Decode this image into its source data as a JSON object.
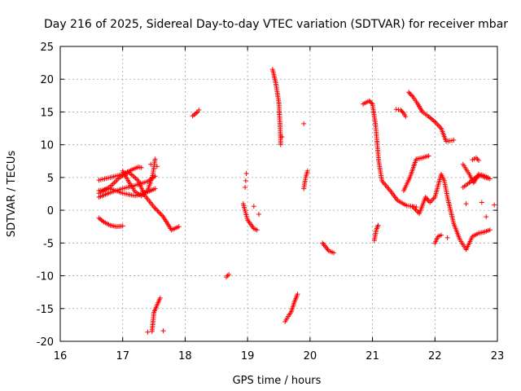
{
  "chart_data": {
    "type": "scatter",
    "title": "Day 216 of 2025, Sidereal Day-to-day VTEC variation (SDTVAR) for receiver mbar",
    "xlabel": "GPS time / hours",
    "ylabel": "SDTVAR / TECUs",
    "xlim": [
      16,
      23
    ],
    "ylim": [
      -20,
      25
    ],
    "xticks": [
      16,
      17,
      18,
      19,
      20,
      21,
      22,
      23
    ],
    "yticks": [
      -20,
      -15,
      -10,
      -5,
      0,
      5,
      10,
      15,
      20,
      25
    ],
    "grid": true,
    "marker": "plus",
    "color": "#ff0000",
    "tracks": [
      [
        [
          16.62,
          -1.2
        ],
        [
          16.7,
          -1.8
        ],
        [
          16.8,
          -2.3
        ],
        [
          16.9,
          -2.5
        ],
        [
          17.0,
          -2.4
        ]
      ],
      [
        [
          16.62,
          4.6
        ],
        [
          16.8,
          5.0
        ],
        [
          17.0,
          5.5
        ],
        [
          17.15,
          6.2
        ],
        [
          17.25,
          6.6
        ],
        [
          17.3,
          6.5
        ]
      ],
      [
        [
          16.62,
          2.0
        ],
        [
          16.8,
          2.7
        ],
        [
          17.0,
          3.3
        ],
        [
          17.2,
          3.8
        ],
        [
          17.4,
          4.4
        ],
        [
          17.52,
          5.2
        ]
      ],
      [
        [
          16.62,
          3.0
        ],
        [
          16.8,
          3.3
        ],
        [
          17.0,
          2.6
        ],
        [
          17.2,
          2.2
        ],
        [
          17.4,
          2.8
        ],
        [
          17.52,
          3.3
        ]
      ],
      [
        [
          16.62,
          2.6
        ],
        [
          16.8,
          3.6
        ],
        [
          16.95,
          5.0
        ],
        [
          17.1,
          5.8
        ],
        [
          17.25,
          4.5
        ],
        [
          17.35,
          2.3
        ],
        [
          17.5,
          0.5
        ],
        [
          17.65,
          -1.0
        ],
        [
          17.78,
          -3.0
        ],
        [
          17.9,
          -2.5
        ]
      ],
      [
        [
          17.0,
          6.0
        ],
        [
          17.1,
          4.3
        ],
        [
          17.2,
          2.8
        ],
        [
          17.3,
          2.2
        ],
        [
          17.4,
          3.0
        ],
        [
          17.48,
          5.3
        ],
        [
          17.52,
          7.8
        ]
      ],
      [
        [
          17.6,
          -13.4
        ],
        [
          17.5,
          -15.6
        ],
        [
          17.47,
          -18.5
        ]
      ],
      [
        [
          18.12,
          14.4
        ],
        [
          18.2,
          15.0
        ],
        [
          18.22,
          15.3
        ]
      ],
      [
        [
          18.66,
          -10.2
        ],
        [
          18.7,
          -9.8
        ]
      ],
      [
        [
          18.93,
          1.0
        ],
        [
          19.0,
          -1.5
        ],
        [
          19.1,
          -2.8
        ],
        [
          19.15,
          -3.0
        ]
      ],
      [
        [
          19.4,
          21.5
        ],
        [
          19.45,
          19.5
        ],
        [
          19.5,
          16.5
        ],
        [
          19.52,
          13.0
        ],
        [
          19.53,
          10.0
        ]
      ],
      [
        [
          19.6,
          -17.0
        ],
        [
          19.65,
          -16.2
        ],
        [
          19.7,
          -15.5
        ],
        [
          19.75,
          -14.0
        ],
        [
          19.8,
          -12.8
        ]
      ],
      [
        [
          19.9,
          3.3
        ],
        [
          19.93,
          5.0
        ],
        [
          19.96,
          6.0
        ]
      ],
      [
        [
          20.2,
          -5.0
        ],
        [
          20.3,
          -6.2
        ],
        [
          20.38,
          -6.5
        ]
      ],
      [
        [
          20.85,
          16.2
        ],
        [
          20.95,
          16.7
        ],
        [
          21.0,
          16.2
        ],
        [
          21.05,
          13.0
        ],
        [
          21.1,
          7.5
        ],
        [
          21.15,
          4.5
        ],
        [
          21.3,
          2.8
        ],
        [
          21.4,
          1.5
        ],
        [
          21.55,
          0.7
        ],
        [
          21.7,
          0.5
        ]
      ],
      [
        [
          21.38,
          15.4
        ],
        [
          21.45,
          15.3
        ],
        [
          21.5,
          14.8
        ],
        [
          21.53,
          14.3
        ]
      ],
      [
        [
          21.58,
          18.0
        ],
        [
          21.65,
          17.3
        ],
        [
          21.72,
          16.3
        ],
        [
          21.8,
          15.0
        ],
        [
          21.9,
          14.3
        ],
        [
          22.0,
          13.5
        ],
        [
          22.1,
          12.5
        ],
        [
          22.18,
          10.5
        ],
        [
          22.3,
          10.7
        ]
      ],
      [
        [
          21.03,
          -4.6
        ],
        [
          21.06,
          -3.0
        ],
        [
          21.09,
          -2.3
        ]
      ],
      [
        [
          21.5,
          3.0
        ],
        [
          21.6,
          5.0
        ],
        [
          21.7,
          7.8
        ],
        [
          21.8,
          8.0
        ],
        [
          21.9,
          8.3
        ]
      ],
      [
        [
          21.65,
          0.5
        ],
        [
          21.75,
          -0.5
        ],
        [
          21.85,
          2.0
        ],
        [
          21.92,
          1.2
        ],
        [
          22.0,
          2.0
        ],
        [
          22.1,
          5.5
        ],
        [
          22.15,
          4.5
        ],
        [
          22.2,
          2.0
        ],
        [
          22.3,
          -2.0
        ],
        [
          22.4,
          -4.5
        ],
        [
          22.5,
          -6.0
        ],
        [
          22.6,
          -4.0
        ],
        [
          22.7,
          -3.5
        ],
        [
          22.8,
          -3.3
        ],
        [
          22.88,
          -3.0
        ]
      ],
      [
        [
          22.0,
          -5.0
        ],
        [
          22.05,
          -4.0
        ],
        [
          22.1,
          -3.8
        ]
      ],
      [
        [
          22.45,
          7.0
        ],
        [
          22.55,
          5.5
        ],
        [
          22.62,
          4.2
        ],
        [
          22.7,
          5.5
        ],
        [
          22.8,
          5.0
        ],
        [
          22.88,
          4.8
        ]
      ],
      [
        [
          22.45,
          3.5
        ],
        [
          22.55,
          4.2
        ],
        [
          22.65,
          5.0
        ],
        [
          22.75,
          5.4
        ],
        [
          22.85,
          5.0
        ]
      ],
      [
        [
          22.6,
          7.7
        ],
        [
          22.66,
          8.0
        ],
        [
          22.7,
          7.6
        ]
      ]
    ],
    "points": [
      [
        17.4,
        -18.6
      ],
      [
        17.65,
        -18.4
      ],
      [
        17.45,
        7.0
      ],
      [
        17.55,
        6.7
      ],
      [
        18.98,
        5.6
      ],
      [
        18.97,
        4.5
      ],
      [
        18.96,
        3.5
      ],
      [
        19.1,
        0.6
      ],
      [
        19.18,
        -0.6
      ],
      [
        19.55,
        11.2
      ],
      [
        19.9,
        13.2
      ],
      [
        22.75,
        1.2
      ],
      [
        22.82,
        -1.0
      ],
      [
        22.95,
        0.8
      ],
      [
        22.5,
        1.0
      ],
      [
        22.2,
        -4.2
      ]
    ]
  }
}
